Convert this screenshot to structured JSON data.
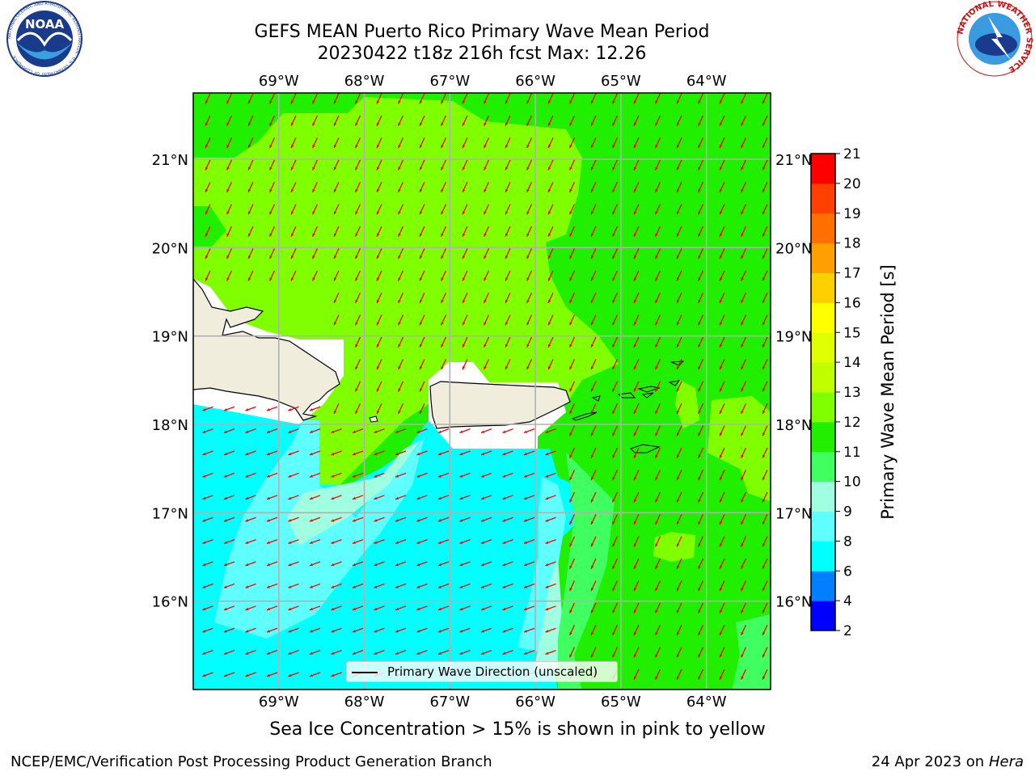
{
  "header": {
    "title_line1": "GEFS MEAN Puerto Rico Primary Wave Mean Period",
    "title_line2": "20230422 t18z 216h fcst   Max: 12.26"
  },
  "logos": {
    "noaa_text": "NOAA",
    "noaa_ring": "NATIONAL OCEANIC AND ATMOSPHERIC ADMINISTRATION · U.S. DEPARTMENT OF COMMERCE",
    "nws_ring": "NATIONAL WEATHER SERVICE"
  },
  "map": {
    "lon_ticks": [
      "69°W",
      "68°W",
      "67°W",
      "66°W",
      "65°W",
      "64°W"
    ],
    "lon_values": [
      -69,
      -68,
      -67,
      -66,
      -65,
      -64
    ],
    "lat_ticks": [
      "21°N",
      "20°N",
      "19°N",
      "18°N",
      "17°N",
      "16°N"
    ],
    "lat_values": [
      21,
      20,
      19,
      18,
      17,
      16
    ],
    "lon_range": [
      -70.0,
      -63.25
    ],
    "lat_range": [
      15.0,
      21.75
    ],
    "arrow_color": "#ff0000",
    "land_color": "#f0eddc"
  },
  "legend": {
    "label": "Primary Wave Direction (unscaled)"
  },
  "colorbar": {
    "label": "Primary Wave Mean Period [s]",
    "ticks": [
      "2",
      "4",
      "6",
      "8",
      "9",
      "10",
      "11",
      "12",
      "13",
      "14",
      "15",
      "16",
      "17",
      "18",
      "19",
      "20",
      "21"
    ],
    "colors": [
      "#0000ff",
      "#0080ff",
      "#00ffff",
      "#60ffff",
      "#a0ffe0",
      "#40ff60",
      "#20f000",
      "#80ff00",
      "#c0ff00",
      "#e0ff00",
      "#ffff00",
      "#ffd000",
      "#ffa000",
      "#ff7000",
      "#ff4000",
      "#ff0000"
    ]
  },
  "caption": "Sea Ice Concentration > 15% is shown in pink to yellow",
  "footer": {
    "left": "NCEP/EMC/Verification Post Processing Product Generation Branch",
    "right_date": "24 Apr 2023 on ",
    "right_host": "Hera"
  }
}
